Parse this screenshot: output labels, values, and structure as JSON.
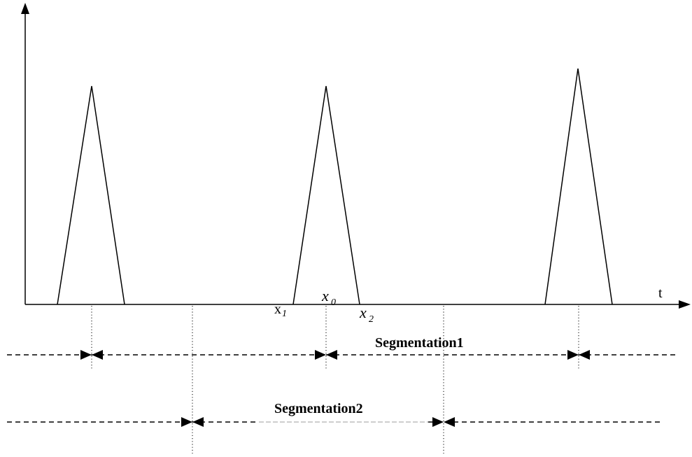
{
  "labels": {
    "t_axis": "t",
    "x1_main": "x",
    "x1_sub": "1",
    "x0_main": "x",
    "x0_sub": "0",
    "x2_main": "x",
    "x2_sub": "2",
    "segmentation1": "Segmentation1",
    "segmentation2": "Segmentation2"
  },
  "colors": {
    "line": "#000000",
    "faint_dash": "#bdbdbd",
    "background": "#ffffff"
  }
}
